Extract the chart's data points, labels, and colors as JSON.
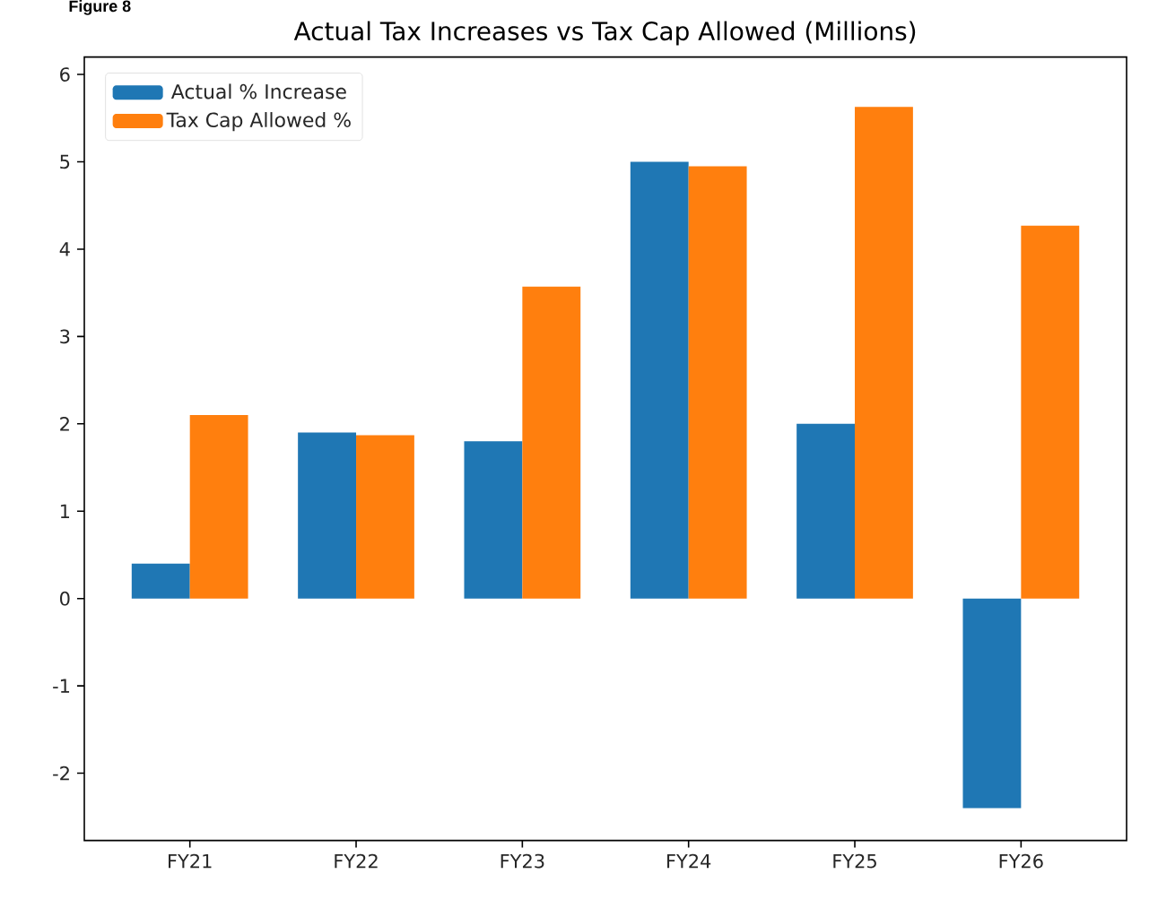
{
  "chart_data": {
    "type": "bar",
    "title": "Actual Tax Increases vs Tax Cap Allowed (Millions)",
    "categories": [
      "FY21",
      "FY22",
      "FY23",
      "FY24",
      "FY25",
      "FY26"
    ],
    "series": [
      {
        "name": "Actual % Increase",
        "color": "#1f77b4",
        "values": [
          0.4,
          1.9,
          1.8,
          5.0,
          2.0,
          -2.4
        ]
      },
      {
        "name": "Tax Cap Allowed %",
        "color": "#ff7f0e",
        "values": [
          2.1,
          1.87,
          3.57,
          4.95,
          5.63,
          4.27
        ]
      }
    ],
    "ylim": [
      -2.77,
      6.2
    ],
    "yticks": [
      -2,
      -1,
      0,
      1,
      2,
      3,
      4,
      5,
      6
    ],
    "legend": "top left",
    "annotations": [
      "Figure 8"
    ]
  }
}
